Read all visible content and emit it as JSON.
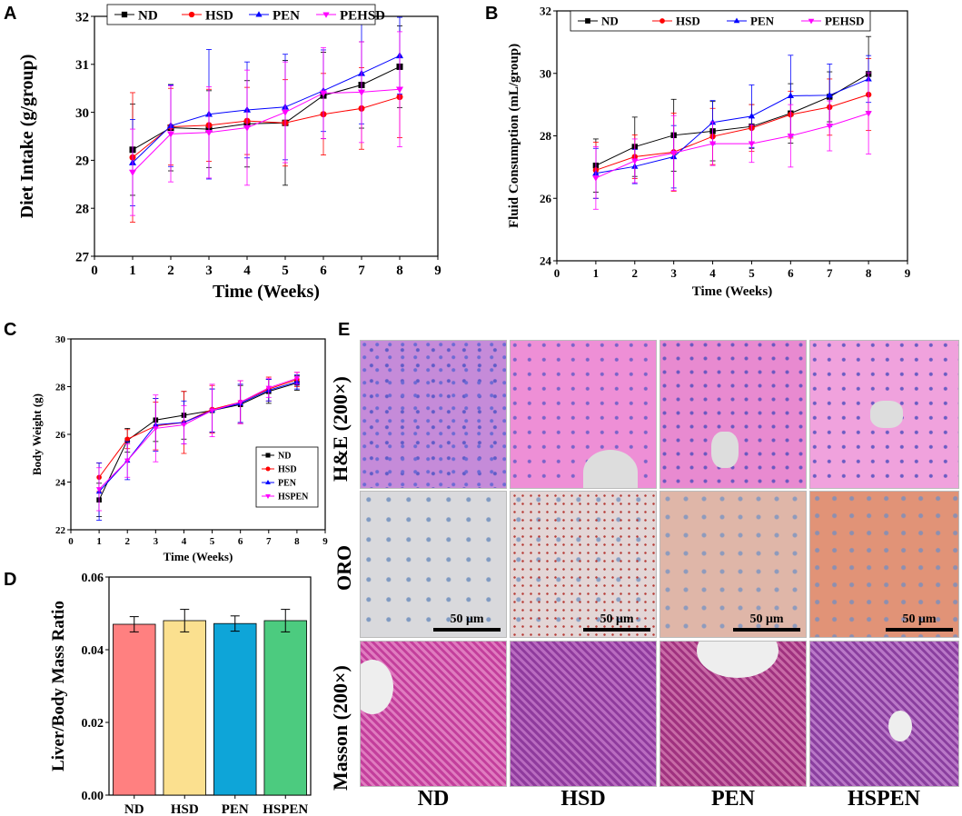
{
  "panels": {
    "a": "A",
    "b": "B",
    "c": "C",
    "d": "D",
    "e": "E"
  },
  "chart_data": [
    {
      "id": "A",
      "type": "line",
      "xlabel": "Time (Weeks)",
      "ylabel": "Diet Intake (g/group)",
      "xlim": [
        0,
        9
      ],
      "ylim": [
        27,
        32
      ],
      "xticks": [
        0,
        1,
        2,
        3,
        4,
        5,
        6,
        7,
        8,
        9
      ],
      "yticks": [
        27,
        28,
        29,
        30,
        31,
        32
      ],
      "x": [
        1,
        2,
        3,
        4,
        5,
        6,
        7,
        8
      ],
      "legend_position": "top",
      "series": [
        {
          "name": "ND",
          "color": "#000000",
          "marker": "square",
          "values": [
            29.22,
            29.68,
            29.65,
            29.76,
            29.78,
            30.35,
            30.57,
            30.95
          ],
          "errors": [
            0.95,
            0.9,
            0.8,
            0.9,
            1.3,
            0.9,
            0.9,
            0.85
          ]
        },
        {
          "name": "HSD",
          "color": "#ff0000",
          "marker": "circle",
          "values": [
            29.06,
            29.7,
            29.73,
            29.82,
            29.78,
            29.96,
            30.08,
            30.32
          ],
          "errors": [
            1.35,
            0.8,
            0.75,
            0.7,
            0.9,
            0.85,
            0.85,
            0.85
          ]
        },
        {
          "name": "PEN",
          "color": "#0000ff",
          "marker": "triangle-up",
          "values": [
            28.95,
            29.72,
            29.96,
            30.05,
            30.11,
            30.45,
            30.81,
            31.18
          ],
          "errors": [
            0.9,
            0.85,
            1.35,
            1.0,
            1.1,
            0.85,
            1.05,
            0.8
          ]
        },
        {
          "name": "PEHSD",
          "color": "#ff00ff",
          "marker": "triangle-down",
          "values": [
            28.75,
            29.55,
            29.58,
            29.68,
            30.0,
            30.4,
            30.42,
            30.48
          ],
          "errors": [
            0.9,
            1.0,
            0.95,
            1.2,
            1.05,
            0.95,
            1.05,
            1.2
          ]
        }
      ]
    },
    {
      "id": "B",
      "type": "line",
      "xlabel": "Time (Weeks)",
      "ylabel": "Fluid Consumption (mL/group)",
      "xlim": [
        0,
        9
      ],
      "ylim": [
        24,
        32
      ],
      "xticks": [
        0,
        1,
        2,
        3,
        4,
        5,
        6,
        7,
        8,
        9
      ],
      "yticks": [
        24,
        26,
        28,
        30,
        32
      ],
      "x": [
        1,
        2,
        3,
        4,
        5,
        6,
        7,
        8
      ],
      "legend_position": "top",
      "series": [
        {
          "name": "ND",
          "color": "#000000",
          "marker": "square",
          "values": [
            27.05,
            27.65,
            28.02,
            28.15,
            28.3,
            28.72,
            29.25,
            29.98
          ],
          "errors": [
            0.85,
            0.95,
            1.15,
            0.95,
            0.7,
            0.95,
            0.8,
            1.2
          ]
        },
        {
          "name": "HSD",
          "color": "#ff0000",
          "marker": "circle",
          "values": [
            26.9,
            27.33,
            27.48,
            27.98,
            28.25,
            28.68,
            28.92,
            29.32
          ],
          "errors": [
            0.9,
            0.7,
            1.25,
            0.9,
            0.75,
            0.75,
            0.9,
            1.15
          ]
        },
        {
          "name": "PEN",
          "color": "#0000ff",
          "marker": "triangle-up",
          "values": [
            26.8,
            27.02,
            27.33,
            28.43,
            28.63,
            29.28,
            29.3,
            29.82
          ],
          "errors": [
            0.8,
            0.55,
            1.0,
            0.7,
            1.0,
            1.3,
            1.0,
            0.75
          ]
        },
        {
          "name": "PEHSD",
          "color": "#ff00ff",
          "marker": "triangle-down",
          "values": [
            26.65,
            27.2,
            27.45,
            27.75,
            27.75,
            28.0,
            28.32,
            28.72
          ],
          "errors": [
            1.0,
            0.7,
            1.2,
            0.7,
            0.6,
            1.0,
            0.8,
            1.3
          ]
        }
      ]
    },
    {
      "id": "C",
      "type": "line",
      "xlabel": "Time (Weeks)",
      "ylabel": "Body Weight (g)",
      "xlim": [
        0,
        9
      ],
      "ylim": [
        22,
        30
      ],
      "xticks": [
        0,
        1,
        2,
        3,
        4,
        5,
        6,
        7,
        8,
        9
      ],
      "yticks": [
        22,
        24,
        26,
        28,
        30
      ],
      "x": [
        1,
        2,
        3,
        4,
        5,
        6,
        7,
        8
      ],
      "legend_position": "bottom-right",
      "series": [
        {
          "name": "ND",
          "color": "#000000",
          "marker": "square",
          "values": [
            23.25,
            25.75,
            26.6,
            26.8,
            27.0,
            27.25,
            27.8,
            28.15
          ],
          "errors": [
            0.7,
            0.5,
            0.9,
            1.0,
            0.9,
            0.8,
            0.5,
            0.3
          ]
        },
        {
          "name": "HSD",
          "color": "#ff0000",
          "marker": "circle",
          "values": [
            24.2,
            25.8,
            26.35,
            26.5,
            27.05,
            27.35,
            27.9,
            28.3
          ],
          "errors": [
            0.6,
            0.4,
            1.0,
            1.3,
            1.0,
            0.9,
            0.5,
            0.3
          ]
        },
        {
          "name": "PEN",
          "color": "#0000ff",
          "marker": "triangle-up",
          "values": [
            23.6,
            24.9,
            26.4,
            26.5,
            27.0,
            27.3,
            27.85,
            28.2
          ],
          "errors": [
            1.2,
            0.8,
            1.1,
            0.9,
            0.9,
            0.8,
            0.45,
            0.3
          ]
        },
        {
          "name": "HSPEN",
          "color": "#ff00ff",
          "marker": "triangle-down",
          "values": [
            23.7,
            24.9,
            26.25,
            26.4,
            27.0,
            27.35,
            27.95,
            28.35
          ],
          "errors": [
            0.9,
            0.7,
            1.4,
            0.8,
            1.1,
            0.9,
            0.4,
            0.25
          ]
        }
      ]
    },
    {
      "id": "D",
      "type": "bar",
      "xlabel": "",
      "ylabel": "Liver/Body Mass Ratio",
      "ylim": [
        0,
        0.06
      ],
      "yticks": [
        "0.00",
        "0.02",
        "0.04",
        "0.06"
      ],
      "categories": [
        "ND",
        "HSD",
        "PEN",
        "HSPEN"
      ],
      "values": [
        0.047,
        0.048,
        0.0472,
        0.048
      ],
      "errors": [
        0.0021,
        0.0031,
        0.0021,
        0.0031
      ],
      "colors": [
        "#ff8080",
        "#fbe08f",
        "#0ea5d8",
        "#4ccb7f"
      ]
    }
  ],
  "histology": {
    "rows": [
      "H&E (200×)",
      "ORO",
      "Masson (200×)"
    ],
    "columns": [
      "ND",
      "HSD",
      "PEN",
      "HSPEN"
    ],
    "scale_bar": "50 μm"
  }
}
